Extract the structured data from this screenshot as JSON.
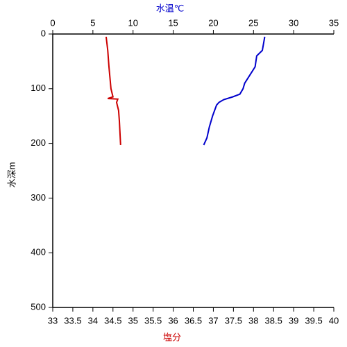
{
  "chart_data": {
    "type": "line",
    "y_label": "水深m",
    "x_label": "塩分",
    "x2_label": "水温℃",
    "ylim": [
      0,
      500
    ],
    "yticks": [
      0,
      100,
      200,
      300,
      400,
      500
    ],
    "y_inverted": true,
    "xlim": [
      33,
      40
    ],
    "xticks": [
      33,
      33.5,
      34,
      34.5,
      35,
      35.5,
      36,
      36.5,
      37,
      37.5,
      38,
      38.5,
      39,
      39.5,
      40
    ],
    "x2lim": [
      0,
      35
    ],
    "x2ticks": [
      0,
      5,
      10,
      15,
      20,
      25,
      30,
      35
    ],
    "x_label_color": "#cc0000",
    "x2_label_color": "#0000cc",
    "series": [
      {
        "color": "#0000cc",
        "axis": "x2",
        "x": [
          26.4,
          26.1,
          25.4,
          25.2,
          23.9,
          23.7,
          23.3,
          22.4,
          21.3,
          20.7,
          20.4,
          19.9,
          19.5,
          19.2,
          18.8
        ],
        "y": [
          5,
          30,
          40,
          60,
          90,
          100,
          110,
          115,
          120,
          125,
          130,
          150,
          170,
          190,
          203
        ]
      },
      {
        "color": "#cc0000",
        "axis": "x",
        "x": [
          34.33,
          34.37,
          34.4,
          34.45,
          34.5,
          34.37,
          34.62,
          34.59,
          34.64,
          34.66,
          34.69
        ],
        "y": [
          5,
          30,
          60,
          100,
          115,
          118,
          119,
          125,
          140,
          160,
          203
        ]
      }
    ]
  }
}
